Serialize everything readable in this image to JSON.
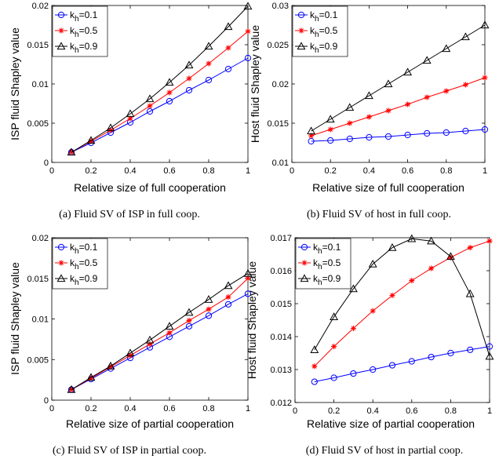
{
  "chart_data": [
    {
      "type": "line",
      "caption": "(a)  Fluid SV of ISP in full coop.",
      "xlabel": "Relative size of full cooperation",
      "ylabel": "ISP fluid Shapley value",
      "xlim": [
        0,
        1
      ],
      "ylim": [
        0,
        0.02
      ],
      "xticks": [
        "0",
        "0.2",
        "0.4",
        "0.6",
        "0.8",
        "1"
      ],
      "yticks": [
        "0",
        "0.005",
        "0.01",
        "0.015",
        "0.02"
      ],
      "legend_position": "top-left",
      "grid": false,
      "x": [
        0.1,
        0.2,
        0.3,
        0.4,
        0.5,
        0.6,
        0.7,
        0.8,
        0.9,
        1.0
      ],
      "series": [
        {
          "name": "k_h=0.1",
          "color": "#0000ff",
          "marker": "circle",
          "values": [
            0.0013,
            0.0025,
            0.0038,
            0.0051,
            0.0065,
            0.0078,
            0.0092,
            0.0105,
            0.0119,
            0.0133
          ]
        },
        {
          "name": "k_h=0.5",
          "color": "#ff0000",
          "marker": "star",
          "values": [
            0.0013,
            0.0027,
            0.0041,
            0.0056,
            0.0072,
            0.0089,
            0.0107,
            0.0126,
            0.0146,
            0.0167
          ]
        },
        {
          "name": "k_h=0.9",
          "color": "#000000",
          "marker": "triangle",
          "values": [
            0.0013,
            0.0028,
            0.0044,
            0.0062,
            0.0081,
            0.0102,
            0.0124,
            0.0148,
            0.0173,
            0.0199
          ]
        }
      ]
    },
    {
      "type": "line",
      "caption": "(b)  Fluid SV of host in full coop.",
      "xlabel": "Relative size of full cooperation",
      "ylabel": "Host fluid Shapley value",
      "xlim": [
        0,
        1
      ],
      "ylim": [
        0.01,
        0.03
      ],
      "xticks": [
        "0",
        "0.2",
        "0.4",
        "0.6",
        "0.8",
        "1"
      ],
      "yticks": [
        "0.01",
        "0.015",
        "0.02",
        "0.025",
        "0.03"
      ],
      "legend_position": "top-left",
      "grid": false,
      "x": [
        0.1,
        0.2,
        0.3,
        0.4,
        0.5,
        0.6,
        0.7,
        0.8,
        0.9,
        1.0
      ],
      "series": [
        {
          "name": "k_h=0.1",
          "color": "#0000ff",
          "marker": "circle",
          "values": [
            0.0127,
            0.0128,
            0.013,
            0.0132,
            0.0133,
            0.0135,
            0.0137,
            0.0138,
            0.014,
            0.0142
          ]
        },
        {
          "name": "k_h=0.5",
          "color": "#ff0000",
          "marker": "star",
          "values": [
            0.0134,
            0.0142,
            0.015,
            0.0158,
            0.0166,
            0.0174,
            0.0183,
            0.0191,
            0.0199,
            0.0208
          ]
        },
        {
          "name": "k_h=0.9",
          "color": "#000000",
          "marker": "triangle",
          "values": [
            0.014,
            0.0155,
            0.017,
            0.0185,
            0.02,
            0.0215,
            0.023,
            0.0245,
            0.026,
            0.0275
          ]
        }
      ]
    },
    {
      "type": "line",
      "caption": "(c)  Fluid SV of ISP in partial coop.",
      "xlabel": "Relative size of partial cooperation",
      "ylabel": "ISP fluid Shapley value",
      "xlim": [
        0,
        1
      ],
      "ylim": [
        0,
        0.02
      ],
      "xticks": [
        "0",
        "0.2",
        "0.4",
        "0.6",
        "0.8",
        "1"
      ],
      "yticks": [
        "0",
        "0.005",
        "0.01",
        "0.015",
        "0.02"
      ],
      "legend_position": "top-left",
      "grid": false,
      "x": [
        0.1,
        0.2,
        0.3,
        0.4,
        0.5,
        0.6,
        0.7,
        0.8,
        0.9,
        1.0
      ],
      "series": [
        {
          "name": "k_h=0.1",
          "color": "#0000ff",
          "marker": "circle",
          "values": [
            0.0013,
            0.0026,
            0.0039,
            0.0052,
            0.0065,
            0.0078,
            0.0091,
            0.0104,
            0.0118,
            0.0131
          ]
        },
        {
          "name": "k_h=0.5",
          "color": "#ff0000",
          "marker": "star",
          "values": [
            0.0013,
            0.0027,
            0.0041,
            0.0055,
            0.0069,
            0.0083,
            0.0098,
            0.0112,
            0.0127,
            0.015
          ]
        },
        {
          "name": "k_h=0.9",
          "color": "#000000",
          "marker": "triangle",
          "values": [
            0.0013,
            0.0028,
            0.0042,
            0.0058,
            0.0074,
            0.0091,
            0.0108,
            0.0124,
            0.0141,
            0.0156
          ]
        }
      ]
    },
    {
      "type": "line",
      "caption": "(d)  Fluid SV of host in partial coop.",
      "xlabel": "Relative size of partial cooperation",
      "ylabel": "Host fluid Shapley value",
      "xlim": [
        0,
        1
      ],
      "ylim": [
        0.012,
        0.017
      ],
      "xticks": [
        "0",
        "0.2",
        "0.4",
        "0.6",
        "0.8",
        "1"
      ],
      "yticks": [
        "0.012",
        "0.013",
        "0.014",
        "0.015",
        "0.016",
        "0.017"
      ],
      "legend_position": "top-left",
      "grid": false,
      "x": [
        0.1,
        0.2,
        0.3,
        0.4,
        0.5,
        0.6,
        0.7,
        0.8,
        0.9,
        1.0
      ],
      "series": [
        {
          "name": "k_h=0.1",
          "color": "#0000ff",
          "marker": "circle",
          "values": [
            0.01263,
            0.01275,
            0.01288,
            0.013,
            0.01313,
            0.01325,
            0.01338,
            0.0135,
            0.0136,
            0.0137
          ]
        },
        {
          "name": "k_h=0.5",
          "color": "#ff0000",
          "marker": "star",
          "values": [
            0.0131,
            0.0137,
            0.01425,
            0.01478,
            0.01525,
            0.0157,
            0.01607,
            0.0164,
            0.0167,
            0.0169
          ]
        },
        {
          "name": "k_h=0.9",
          "color": "#000000",
          "marker": "triangle",
          "values": [
            0.0136,
            0.0146,
            0.01545,
            0.0162,
            0.0167,
            0.01697,
            0.0169,
            0.01643,
            0.0153,
            0.0134
          ]
        }
      ]
    }
  ]
}
